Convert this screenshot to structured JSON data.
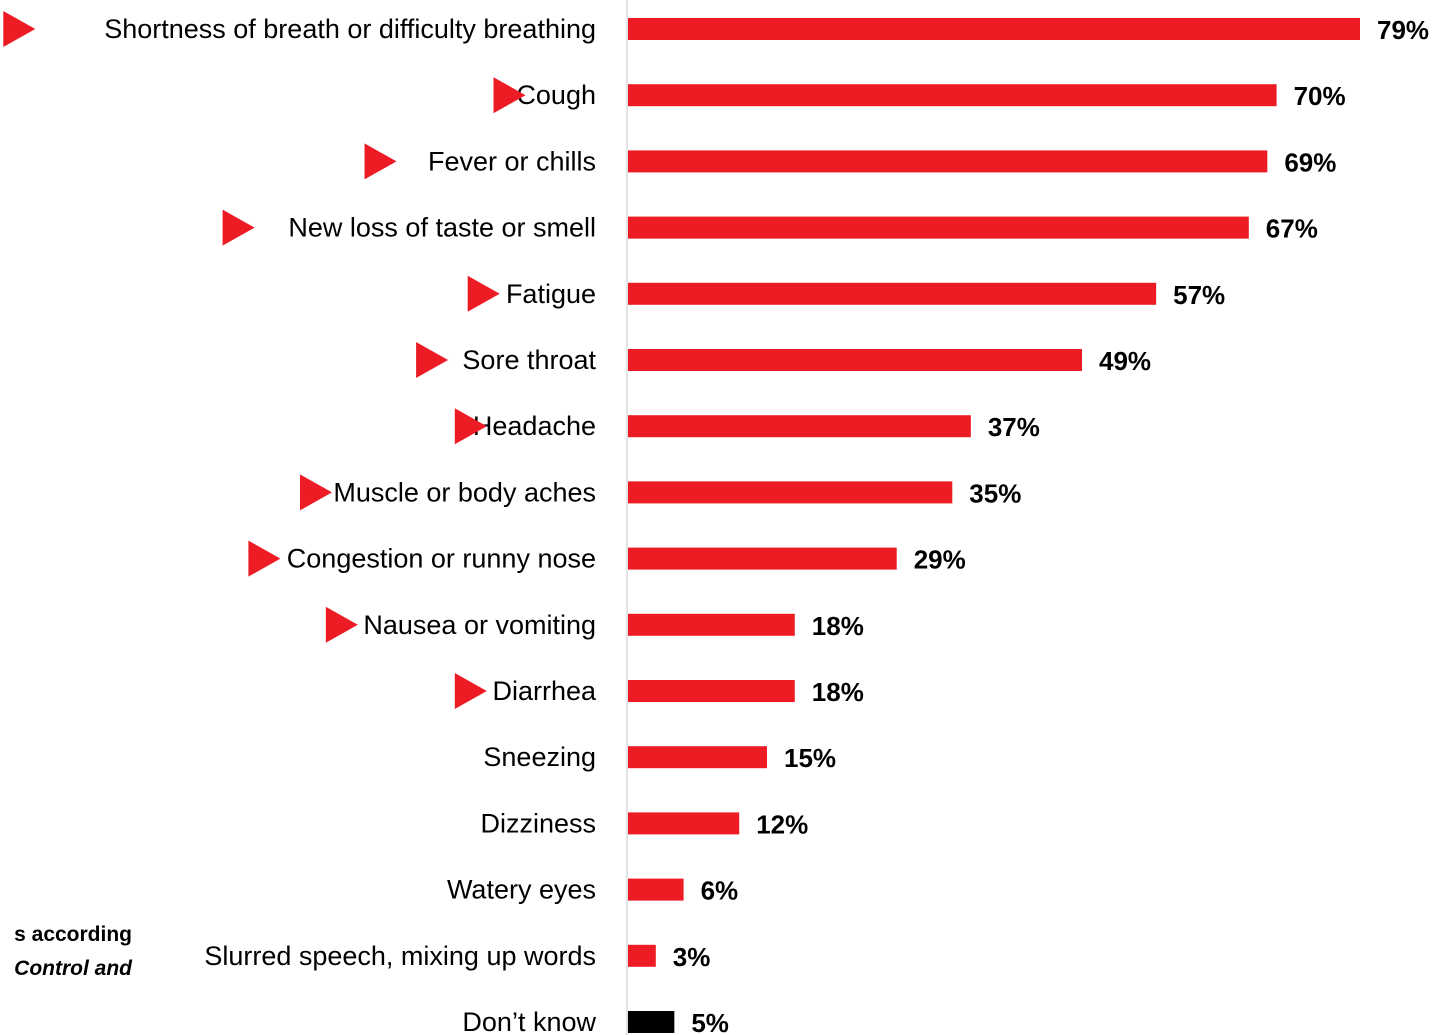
{
  "chart_data": {
    "type": "bar",
    "orientation": "horizontal",
    "categories": [
      "Shortness of breath or difficulty breathing",
      "Cough",
      "Fever or chills",
      "New loss of taste or smell",
      "Fatigue",
      "Sore throat",
      "Headache",
      "Muscle or body aches",
      "Congestion or runny nose",
      "Nausea or vomiting",
      "Diarrhea",
      "Sneezing",
      "Dizziness",
      "Watery eyes",
      "Slurred speech, mixing up words",
      "Don’t know"
    ],
    "values": [
      79,
      70,
      69,
      67,
      57,
      49,
      37,
      35,
      29,
      18,
      18,
      15,
      12,
      6,
      3,
      5
    ],
    "value_labels": [
      "79%",
      "70%",
      "69%",
      "67%",
      "57%",
      "49%",
      "37%",
      "35%",
      "29%",
      "18%",
      "18%",
      "15%",
      "12%",
      "6%",
      "3%",
      "5%"
    ],
    "marked": [
      true,
      true,
      true,
      true,
      true,
      true,
      true,
      true,
      true,
      true,
      true,
      false,
      false,
      false,
      false,
      false
    ],
    "bar_colors": [
      "#ed1c24",
      "#ed1c24",
      "#ed1c24",
      "#ed1c24",
      "#ed1c24",
      "#ed1c24",
      "#ed1c24",
      "#ed1c24",
      "#ed1c24",
      "#ed1c24",
      "#ed1c24",
      "#ed1c24",
      "#ed1c24",
      "#ed1c24",
      "#ed1c24",
      "#000000"
    ],
    "xlim": [
      0,
      80
    ],
    "grid": false,
    "title": "",
    "xlabel": "",
    "ylabel": ""
  },
  "colors": {
    "accent": "#ed1c24",
    "dont_know": "#000000",
    "axis": "#d9d9d9"
  },
  "footnote": {
    "line1": "s according",
    "line2": "Control and"
  }
}
